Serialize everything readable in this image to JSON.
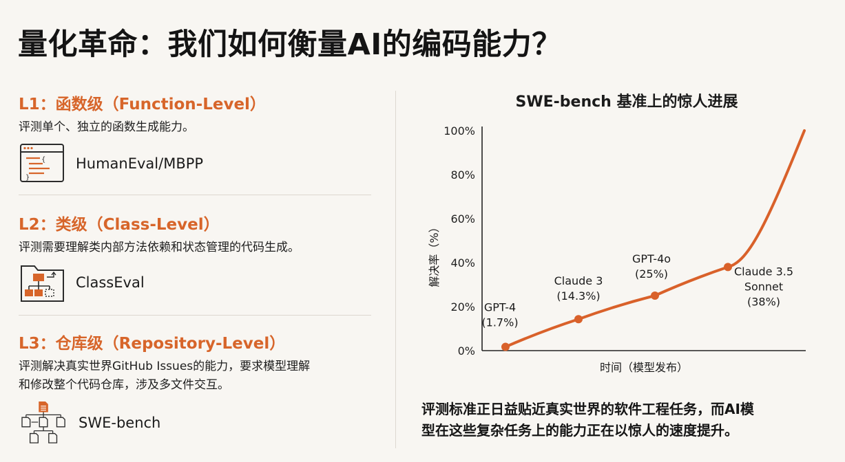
{
  "page": {
    "title": "量化革命：我们如何衡量AI的编码能力？"
  },
  "levels": [
    {
      "heading": "L1：函数级（Function-Level）",
      "description": "评测单个、独立的函数生成能力。",
      "benchmark": "HumanEval/MBPP",
      "icon": "code-window-icon"
    },
    {
      "heading": "L2：类级（Class-Level）",
      "description": "评测需要理解类内部方法依赖和状态管理的代码生成。",
      "benchmark": "ClassEval",
      "icon": "class-diagram-folder-icon"
    },
    {
      "heading": "L3：仓库级（Repository-Level）",
      "description_line1": "评测解决真实世界GitHub Issues的能力，要求模型理解",
      "description_line2": "和修改整个代码仓库，涉及多文件交互。",
      "benchmark": "SWE-bench",
      "icon": "file-tree-icon"
    }
  ],
  "colors": {
    "accent": "#d7652a",
    "line": "#d9612a",
    "text": "#1b1b1b",
    "background": "#f8f6f2"
  },
  "chart_data": {
    "type": "line",
    "title": "SWE-bench 基准上的惊人进展",
    "xlabel": "时间（模型发布）",
    "ylabel": "解决率（%）",
    "ylim": [
      0,
      100
    ],
    "yticks": [
      "0%",
      "20%",
      "40%",
      "60%",
      "80%",
      "100%"
    ],
    "grid": false,
    "points": [
      {
        "label_line1": "GPT-4",
        "label_line2": "(1.7%)",
        "y": 1.7
      },
      {
        "label_line1": "Claude 3",
        "label_line2": "(14.3%)",
        "y": 14.3
      },
      {
        "label_line1": "GPT-4o",
        "label_line2": "(25%)",
        "y": 25
      },
      {
        "label_line1": "Claude 3.5",
        "label_line2": "Sonnet",
        "label_line3": "(38%)",
        "y": 38
      }
    ],
    "trend_end": 100
  },
  "conclusion": {
    "line1": "评测标准正日益贴近真实世界的软件工程任务，而AI模",
    "line2": "型在这些复杂任务上的能力正在以惊人的速度提升。"
  }
}
